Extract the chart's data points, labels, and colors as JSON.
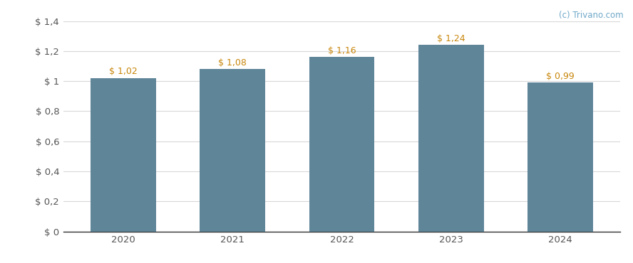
{
  "categories": [
    "2020",
    "2021",
    "2022",
    "2023",
    "2024"
  ],
  "values": [
    1.02,
    1.08,
    1.16,
    1.24,
    0.99
  ],
  "bar_color": "#5f8599",
  "bar_labels": [
    "$ 1,02",
    "$ 1,08",
    "$ 1,16",
    "$ 1,24",
    "$ 0,99"
  ],
  "ylim": [
    0,
    1.4
  ],
  "yticks": [
    0,
    0.2,
    0.4,
    0.6,
    0.8,
    1.0,
    1.2,
    1.4
  ],
  "ytick_labels": [
    "$ 0",
    "$ 0,2",
    "$ 0,4",
    "$ 0,6",
    "$ 0,8",
    "$ 1",
    "$ 1,2",
    "$ 1,4"
  ],
  "background_color": "#ffffff",
  "grid_color": "#d8d8d8",
  "label_color": "#c8860a",
  "watermark": "(c) Trivano.com",
  "watermark_color": "#6fa8c8",
  "bar_width": 0.6,
  "tick_label_color": "#555555",
  "tick_label_fontsize": 9.5,
  "bar_label_fontsize": 9.0,
  "spine_color": "#333333"
}
